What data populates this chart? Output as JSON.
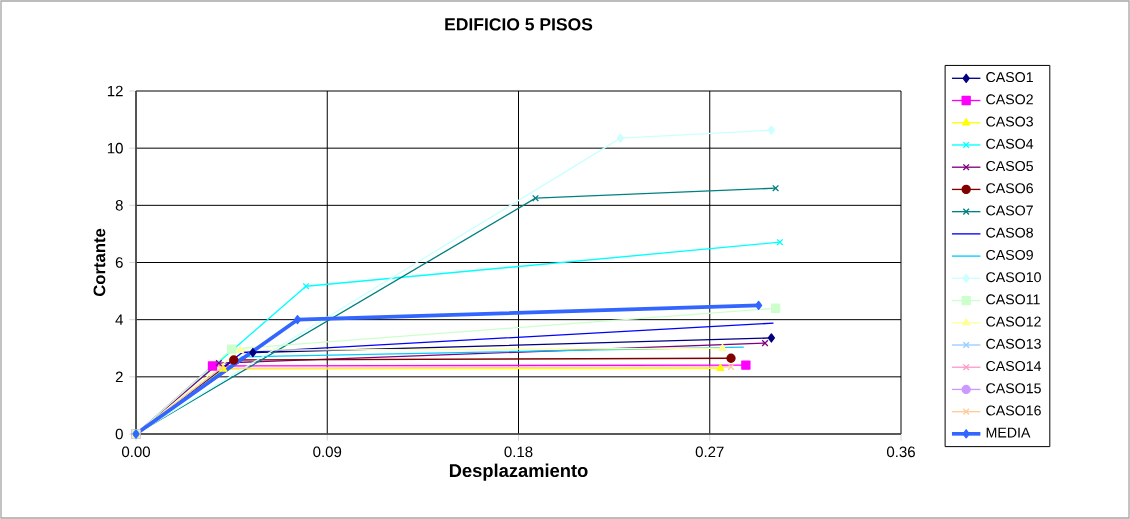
{
  "chart_data": {
    "type": "line",
    "title": "EDIFICIO 5 PISOS",
    "xlabel": "Desplazamiento",
    "ylabel": "Cortante",
    "xlim": [
      0,
      0.36
    ],
    "xticks": [
      {
        "value": 0,
        "label": "0.00"
      },
      {
        "value": 0.09,
        "label": "0.09"
      },
      {
        "value": 0.18,
        "label": "0.18"
      },
      {
        "value": 0.27,
        "label": "0.27"
      },
      {
        "value": 0.36,
        "label": "0.36"
      }
    ],
    "ylim": [
      0,
      12
    ],
    "yticks": [
      0,
      2,
      4,
      6,
      8,
      10,
      12
    ],
    "grid": true,
    "legend": "right",
    "series": [
      {
        "name": "CASO1",
        "color": "#000080",
        "marker": "diamond",
        "x": [
          0,
          0.055,
          0.299
        ],
        "values": [
          0,
          2.85,
          3.36
        ]
      },
      {
        "name": "CASO2",
        "color": "#ff00ff",
        "marker": "square",
        "x": [
          0,
          0.036,
          0.287
        ],
        "values": [
          0,
          2.38,
          2.41
        ]
      },
      {
        "name": "CASO3",
        "color": "#ffff00",
        "marker": "triangle",
        "x": [
          0,
          0.041,
          0.275
        ],
        "values": [
          0,
          2.27,
          2.3
        ]
      },
      {
        "name": "CASO4",
        "color": "#00ffff",
        "marker": "cross",
        "x": [
          0,
          0.08,
          0.303
        ],
        "values": [
          0,
          5.17,
          6.71
        ]
      },
      {
        "name": "CASO5",
        "color": "#800080",
        "marker": "cross",
        "x": [
          0,
          0.039,
          0.296
        ],
        "values": [
          0,
          2.48,
          3.18
        ]
      },
      {
        "name": "CASO6",
        "color": "#800000",
        "marker": "circle",
        "x": [
          0,
          0.046,
          0.28
        ],
        "values": [
          0,
          2.59,
          2.65
        ]
      },
      {
        "name": "CASO7",
        "color": "#008080",
        "marker": "cross",
        "x": [
          0,
          0.188,
          0.301
        ],
        "values": [
          0,
          8.25,
          8.6
        ]
      },
      {
        "name": "CASO8",
        "color": "#0000ff",
        "marker": "none",
        "x": [
          0,
          0.05,
          0.3
        ],
        "values": [
          0,
          2.85,
          3.88
        ]
      },
      {
        "name": "CASO9",
        "color": "#00ccff",
        "marker": "none",
        "x": [
          0,
          0.05,
          0.286
        ],
        "values": [
          0,
          2.7,
          3.04
        ]
      },
      {
        "name": "CASO10",
        "color": "#ccffff",
        "marker": "diamond",
        "x": [
          0,
          0.228,
          0.299
        ],
        "values": [
          0,
          10.35,
          10.63
        ]
      },
      {
        "name": "CASO11",
        "color": "#ccffcc",
        "marker": "square",
        "x": [
          0,
          0.045,
          0.301
        ],
        "values": [
          0,
          2.97,
          4.4
        ]
      },
      {
        "name": "CASO12",
        "color": "#ffff99",
        "marker": "triangle",
        "x": [
          0,
          0.049,
          0.276
        ],
        "values": [
          0,
          2.93,
          3.0
        ]
      },
      {
        "name": "CASO13",
        "color": "#99ccff",
        "marker": "cross",
        "values": [
          null,
          null,
          null
        ]
      },
      {
        "name": "CASO14",
        "color": "#ff99cc",
        "marker": "cross",
        "values": [
          null,
          null,
          null
        ]
      },
      {
        "name": "CASO15",
        "color": "#cc99ff",
        "marker": "circle",
        "values": [
          null,
          null,
          null
        ]
      },
      {
        "name": "CASO16",
        "color": "#ffcc99",
        "marker": "cross",
        "x": [
          0,
          0.04,
          0.28
        ],
        "values": [
          0,
          2.3,
          2.35
        ]
      },
      {
        "name": "MEDIA",
        "color": "#3366ff",
        "marker": "diamond",
        "x": [
          0,
          0.076,
          0.293
        ],
        "values": [
          0,
          4.0,
          4.5
        ]
      }
    ]
  }
}
